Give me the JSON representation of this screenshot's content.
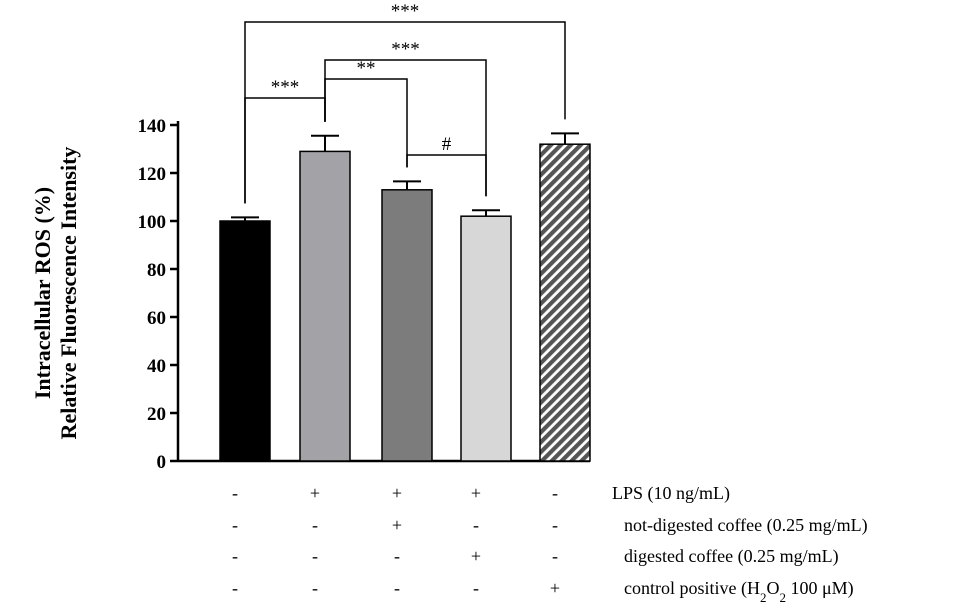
{
  "chart_data": {
    "type": "bar",
    "ylabel_lines": [
      "Intracellular ROS (%)",
      "Relative Fluorescence Intensity"
    ],
    "ylim": [
      0,
      140
    ],
    "yticks": [
      0,
      20,
      40,
      60,
      80,
      100,
      120,
      140
    ],
    "bars": [
      {
        "value": 100,
        "error": 1.5,
        "color": "#000000",
        "pattern": "solid"
      },
      {
        "value": 129,
        "error": 6.5,
        "color": "#a2a2a7",
        "pattern": "solid"
      },
      {
        "value": 113,
        "error": 3.5,
        "color": "#7c7c7c",
        "pattern": "solid"
      },
      {
        "value": 102,
        "error": 2.5,
        "color": "#d7d7d7",
        "pattern": "solid"
      },
      {
        "value": 132,
        "error": 4.5,
        "color": "#555555",
        "pattern": "hatched"
      }
    ],
    "significance": [
      {
        "from": 1,
        "to": 2,
        "label": "***"
      },
      {
        "from": 2,
        "to": 3,
        "label": "**"
      },
      {
        "from": 2,
        "to": 4,
        "label": "***"
      },
      {
        "from": 3,
        "to": 4,
        "label": "#"
      },
      {
        "from": 1,
        "to": 5,
        "label": "***"
      }
    ],
    "condition_rows": [
      {
        "label": "LPS (10 ng/mL)",
        "marks": [
          "-",
          "+",
          "+",
          "+",
          "-"
        ]
      },
      {
        "label": "not-digested coffee (0.25 mg/mL)",
        "marks": [
          "-",
          "-",
          "+",
          "-",
          "-"
        ]
      },
      {
        "label": "digested coffee (0.25 mg/mL)",
        "marks": [
          "-",
          "-",
          "-",
          "+",
          "-"
        ]
      },
      {
        "label_parts": [
          "control positive (H",
          "2",
          "O",
          "2",
          " 100 μM)"
        ],
        "marks": [
          "-",
          "-",
          "-",
          "-",
          "+"
        ]
      }
    ]
  }
}
